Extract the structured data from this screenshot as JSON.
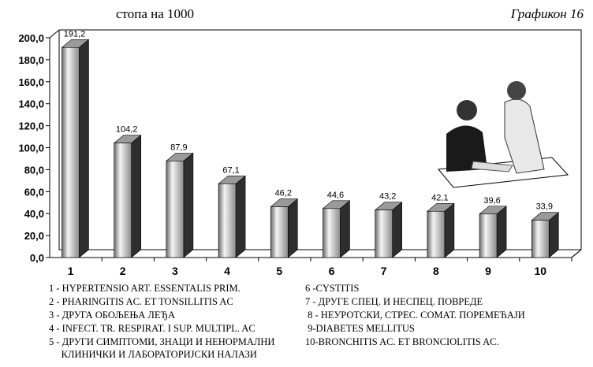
{
  "chart_data": {
    "type": "bar3d",
    "subtitle": "стопа на 1000",
    "title": "Графикон 16",
    "categories": [
      "1",
      "2",
      "3",
      "4",
      "5",
      "6",
      "7",
      "8",
      "9",
      "10"
    ],
    "values": [
      191.2,
      104.2,
      87.9,
      67.1,
      46.2,
      44.6,
      43.2,
      42.1,
      39.6,
      33.9
    ],
    "value_labels": [
      "191,2",
      "104,2",
      "87,9",
      "67,1",
      "46,2",
      "44,6",
      "43,2",
      "42,1",
      "39,6",
      "33,9"
    ],
    "ylim": [
      0,
      200
    ],
    "yticks": [
      {
        "value": 0,
        "label": "0,0"
      },
      {
        "value": 20,
        "label": "20,0"
      },
      {
        "value": 40,
        "label": "40,0"
      },
      {
        "value": 60,
        "label": "60,0"
      },
      {
        "value": 80,
        "label": "80,0"
      },
      {
        "value": 100,
        "label": "100,0"
      },
      {
        "value": 120,
        "label": "120,0"
      },
      {
        "value": 140,
        "label": "140,0"
      },
      {
        "value": 160,
        "label": "160,0"
      },
      {
        "value": 180,
        "label": "180,0"
      },
      {
        "value": 200,
        "label": "200,0"
      }
    ],
    "color": "#9a9a9a",
    "notes_left": [
      "1 - HYPERTENSIO ART. ESSENTALIS PRIM.",
      "2 - PHARINGITIS AC. ET TONSILLITIS AC",
      "3 - ДРУГА ОБОЉЕЊА ЛЕЂА",
      "4 - INFECT. TR. RESPIRAT. I SUP. MULTIPL. AC",
      "5 - ДРУГИ СИМПТОМИ, ЗНАЦИ И НЕНОРМАЛНИ\n     КЛИНИЧКИ И ЛАБОРАТОРИЈСКИ НАЛАЗИ"
    ],
    "notes_right": [
      "6 -CYSTITIS",
      "7 - ДРУГЕ СПЕЦ. И НЕСПЕЦ. ПОВРЕДЕ",
      " 8 - НЕУРОТСКИ, СТРЕС. СОМАТ. ПОРЕМЕЋАЈИ",
      " 9-DIABETES MELLITUS",
      "10-BRONCHITIS AC. ET BRONCIOLITIS AC."
    ]
  }
}
